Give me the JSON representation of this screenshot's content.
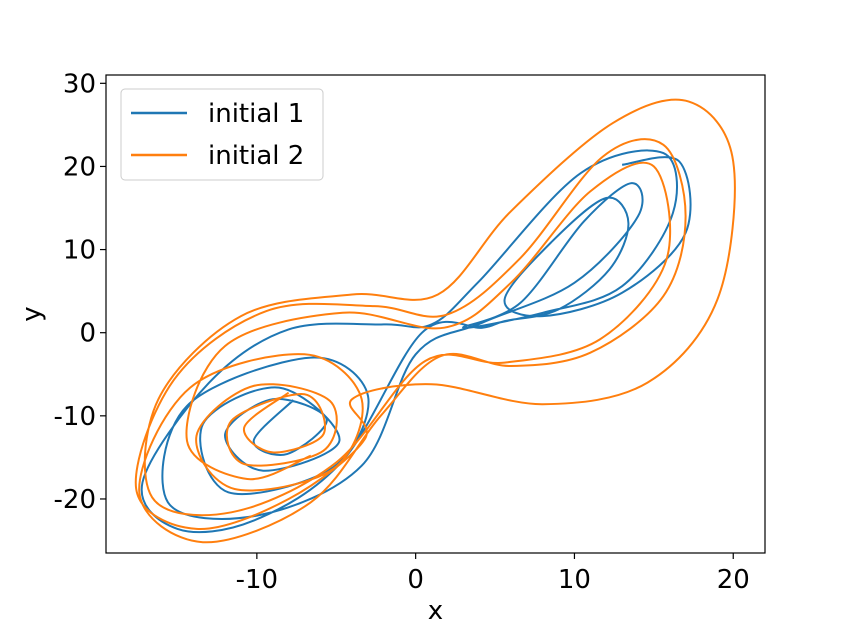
{
  "chart_data": {
    "type": "line",
    "title": "",
    "xlabel": "x",
    "ylabel": "y",
    "xlim": [
      -19.5,
      22
    ],
    "ylim": [
      -26.5,
      31
    ],
    "x_ticks": [
      -10,
      0,
      10,
      20
    ],
    "x_tick_labels": [
      "-10",
      "0",
      "10",
      "20"
    ],
    "y_ticks": [
      -20,
      -10,
      0,
      10,
      20,
      30
    ],
    "y_tick_labels": [
      "-20",
      "-10",
      "0",
      "10",
      "20",
      "30"
    ],
    "grid": false,
    "legend_position": "top-left",
    "series": [
      {
        "name": "initial 1",
        "color": "#1f77b4",
        "description_points": [
          [
            -7.7,
            -8.1
          ],
          [
            -10.2,
            -13.0
          ],
          [
            -8.1,
            -14.6
          ],
          [
            -5.6,
            -10.4
          ],
          [
            -9.0,
            -8.0
          ],
          [
            -12.0,
            -12.2
          ],
          [
            -9.6,
            -16.6
          ],
          [
            -4.8,
            -13.0
          ],
          [
            -8.6,
            -6.6
          ],
          [
            -13.4,
            -11.0
          ],
          [
            -11.8,
            -19.2
          ],
          [
            -5.2,
            -16.2
          ],
          [
            -3.0,
            -7.6
          ],
          [
            -6.6,
            -3.0
          ],
          [
            -14.4,
            -8.8
          ],
          [
            -15.6,
            -20.4
          ],
          [
            -10.0,
            -22.0
          ],
          [
            -3.4,
            -16.0
          ],
          [
            0.0,
            -2.6
          ],
          [
            4.2,
            1.2
          ],
          [
            10.0,
            6.0
          ],
          [
            14.0,
            14.0
          ],
          [
            13.6,
            18.0
          ],
          [
            10.6,
            13.4
          ],
          [
            6.6,
            3.6
          ],
          [
            3.0,
            0.6
          ],
          [
            8.0,
            2.4
          ],
          [
            13.0,
            5.6
          ],
          [
            16.2,
            14.4
          ],
          [
            15.6,
            21.6
          ],
          [
            10.4,
            19.2
          ],
          [
            4.0,
            6.2
          ],
          [
            1.0,
            1.0
          ],
          [
            -2.0,
            1.0
          ],
          [
            -8.0,
            0.4
          ],
          [
            -13.0,
            -6.0
          ],
          [
            -17.2,
            -18.0
          ],
          [
            -15.0,
            -23.6
          ],
          [
            -10.2,
            -22.6
          ],
          [
            -4.6,
            -15.4
          ],
          [
            0.4,
            0.0
          ],
          [
            4.2,
            0.6
          ],
          [
            5.6,
            1.4
          ],
          [
            9.0,
            2.8
          ],
          [
            12.2,
            7.6
          ],
          [
            13.4,
            13.2
          ],
          [
            12.0,
            16.2
          ],
          [
            8.6,
            11.0
          ],
          [
            5.6,
            4.0
          ],
          [
            8.0,
            2.0
          ],
          [
            13.0,
            4.8
          ],
          [
            17.0,
            12.0
          ],
          [
            16.6,
            20.6
          ],
          [
            13.0,
            20.2
          ]
        ]
      },
      {
        "name": "initial 2",
        "color": "#ff7f0e",
        "description_points": [
          [
            -8.0,
            -7.2
          ],
          [
            -10.8,
            -11.4
          ],
          [
            -9.0,
            -14.4
          ],
          [
            -5.8,
            -12.2
          ],
          [
            -7.0,
            -7.4
          ],
          [
            -11.6,
            -10.6
          ],
          [
            -10.8,
            -15.8
          ],
          [
            -5.8,
            -14.2
          ],
          [
            -5.4,
            -8.2
          ],
          [
            -10.2,
            -6.4
          ],
          [
            -13.8,
            -12.4
          ],
          [
            -11.4,
            -18.8
          ],
          [
            -5.2,
            -16.4
          ],
          [
            -3.4,
            -8.0
          ],
          [
            -7.0,
            -2.6
          ],
          [
            -14.2,
            -6.6
          ],
          [
            -17.4,
            -19.2
          ],
          [
            -13.4,
            -25.2
          ],
          [
            -6.6,
            -20.4
          ],
          [
            -2.2,
            -10.0
          ],
          [
            1.6,
            -2.8
          ],
          [
            6.0,
            -4.0
          ],
          [
            11.0,
            -2.4
          ],
          [
            15.6,
            4.4
          ],
          [
            17.0,
            14.0
          ],
          [
            15.6,
            22.6
          ],
          [
            11.8,
            21.2
          ],
          [
            6.6,
            9.0
          ],
          [
            2.0,
            2.2
          ],
          [
            -2.6,
            3.2
          ],
          [
            -9.4,
            2.6
          ],
          [
            -15.2,
            -5.6
          ],
          [
            -17.6,
            -18.8
          ],
          [
            -13.8,
            -23.6
          ],
          [
            -8.0,
            -20.0
          ],
          [
            -3.2,
            -12.8
          ],
          [
            -4.0,
            -8.0
          ],
          [
            1.0,
            -6.2
          ],
          [
            8.0,
            -8.6
          ],
          [
            14.6,
            -6.0
          ],
          [
            19.0,
            4.0
          ],
          [
            20.0,
            20.6
          ],
          [
            17.2,
            27.8
          ],
          [
            12.4,
            25.2
          ],
          [
            6.0,
            14.6
          ],
          [
            1.4,
            4.6
          ],
          [
            -4.0,
            4.6
          ],
          [
            -11.0,
            2.0
          ],
          [
            -16.2,
            -8.0
          ],
          [
            -16.6,
            -19.8
          ],
          [
            -11.6,
            -21.6
          ],
          [
            -5.0,
            -15.6
          ],
          [
            0.6,
            -3.4
          ],
          [
            5.6,
            -3.6
          ],
          [
            11.6,
            -0.8
          ],
          [
            15.8,
            8.8
          ],
          [
            15.0,
            20.0
          ],
          [
            11.0,
            17.0
          ],
          [
            6.0,
            6.0
          ],
          [
            1.8,
            0.6
          ],
          [
            -4.6,
            2.4
          ],
          [
            -12.0,
            -1.6
          ],
          [
            -14.4,
            -13.0
          ],
          [
            -10.6,
            -17.6
          ],
          [
            -6.6,
            -14.8
          ]
        ]
      }
    ]
  }
}
